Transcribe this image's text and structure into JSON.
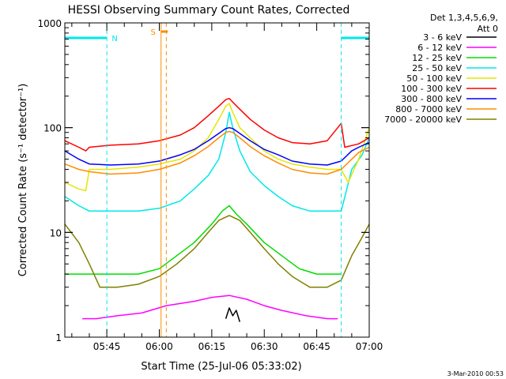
{
  "chart_data": {
    "type": "line",
    "title": "HESSI Observing Summary Count Rates, Corrected",
    "xlabel": "Start Time (25-Jul-06 05:33:02)",
    "ylabel": "Corrected Count Rate (s⁻¹ detector⁻¹)",
    "y_scale": "log",
    "ylim": [
      1,
      1000
    ],
    "xlim": [
      -7,
      80
    ],
    "x_units": "minutes after 05:40",
    "x_ticks": [
      {
        "t": 5,
        "label": "05:45"
      },
      {
        "t": 20,
        "label": "06:00"
      },
      {
        "t": 35,
        "label": "06:15"
      },
      {
        "t": 50,
        "label": "06:30"
      },
      {
        "t": 65,
        "label": "06:45"
      },
      {
        "t": 80,
        "label": "07:00"
      }
    ],
    "y_ticks": [
      {
        "v": 1,
        "label": "1"
      },
      {
        "v": 10,
        "label": "10"
      },
      {
        "v": 100,
        "label": "100"
      },
      {
        "v": 1000,
        "label": "1000"
      }
    ],
    "legend": {
      "header1": "Det 1,3,4,5,6,9,",
      "header2": "Att 0",
      "placement": "right"
    },
    "markers": [
      {
        "label": "N",
        "start": 5.0,
        "end": 72.0,
        "color": "#00e8e8"
      },
      {
        "label": "S",
        "start": 20.5,
        "end": 22.0,
        "color": "#ff8c00"
      }
    ],
    "series": [
      {
        "name": "3 - 6 keV",
        "color": "#000000",
        "x": [
          39,
          40,
          41,
          42,
          43
        ],
        "y": [
          1.5,
          1.9,
          1.6,
          1.8,
          1.4
        ]
      },
      {
        "name": "6 - 12 keV",
        "color": "#ff00ff",
        "x": [
          -2,
          2,
          8,
          15,
          22,
          30,
          35,
          40,
          45,
          50,
          55,
          62,
          68,
          71
        ],
        "y": [
          1.5,
          1.5,
          1.6,
          1.7,
          2.0,
          2.2,
          2.4,
          2.5,
          2.3,
          2.0,
          1.8,
          1.6,
          1.5,
          1.5
        ]
      },
      {
        "name": "12 - 25 keV",
        "color": "#00dd00",
        "x": [
          -7,
          0,
          6,
          14,
          20,
          25,
          30,
          35,
          38,
          40,
          42,
          45,
          50,
          55,
          60,
          65,
          70,
          72
        ],
        "y": [
          4,
          4,
          4,
          4,
          4.5,
          6,
          8,
          12,
          16,
          18,
          15,
          12,
          8,
          6,
          4.5,
          4,
          4,
          4
        ]
      },
      {
        "name": "25 - 50 keV",
        "color": "#00e8e8",
        "x": [
          -7,
          -3,
          0,
          6,
          14,
          20,
          26,
          30,
          34,
          37,
          39,
          40,
          41,
          43,
          46,
          50,
          54,
          58,
          63,
          68,
          72,
          75,
          78,
          80
        ],
        "y": [
          22,
          18,
          16,
          16,
          16,
          17,
          20,
          26,
          35,
          50,
          90,
          140,
          100,
          60,
          38,
          28,
          22,
          18,
          16,
          16,
          16,
          40,
          55,
          80
        ]
      },
      {
        "name": "50 - 100 keV",
        "color": "#e6e600",
        "x": [
          -7,
          -3,
          -1,
          0,
          6,
          14,
          20,
          26,
          30,
          34,
          37,
          39,
          40,
          41,
          43,
          46,
          50,
          54,
          58,
          63,
          68,
          72,
          74,
          77,
          80
        ],
        "y": [
          30,
          26,
          25,
          40,
          40,
          42,
          45,
          50,
          60,
          80,
          120,
          160,
          170,
          140,
          100,
          80,
          60,
          50,
          45,
          42,
          40,
          40,
          30,
          50,
          100
        ]
      },
      {
        "name": "100 - 300 keV",
        "color": "#ff0000",
        "x": [
          -7,
          -3,
          -1,
          0,
          6,
          14,
          20,
          26,
          30,
          34,
          37,
          39,
          40,
          41,
          43,
          46,
          50,
          54,
          58,
          63,
          68,
          72,
          73,
          77,
          80
        ],
        "y": [
          75,
          65,
          60,
          65,
          68,
          70,
          75,
          85,
          100,
          130,
          160,
          185,
          190,
          175,
          150,
          120,
          95,
          80,
          72,
          70,
          75,
          110,
          65,
          70,
          80
        ]
      },
      {
        "name": "300 - 800 keV",
        "color": "#0000ff",
        "x": [
          -7,
          -3,
          0,
          6,
          14,
          20,
          26,
          30,
          34,
          37,
          39,
          40,
          41,
          43,
          46,
          50,
          54,
          58,
          63,
          68,
          72,
          75,
          77,
          80
        ],
        "y": [
          60,
          50,
          45,
          44,
          45,
          48,
          55,
          62,
          75,
          88,
          98,
          100,
          98,
          88,
          75,
          62,
          55,
          48,
          45,
          44,
          48,
          60,
          65,
          72
        ]
      },
      {
        "name": "800 - 7000 keV",
        "color": "#ff8c00",
        "x": [
          -7,
          -3,
          0,
          6,
          14,
          20,
          26,
          30,
          34,
          37,
          39,
          40,
          41,
          43,
          46,
          50,
          54,
          58,
          63,
          68,
          72,
          75,
          77,
          80
        ],
        "y": [
          45,
          40,
          38,
          36,
          37,
          40,
          46,
          54,
          66,
          80,
          90,
          92,
          90,
          80,
          66,
          54,
          46,
          40,
          37,
          36,
          40,
          50,
          58,
          65
        ]
      },
      {
        "name": "7000 - 20000 keV",
        "color": "#808000",
        "x": [
          -7,
          -3,
          0,
          3,
          8,
          14,
          20,
          25,
          30,
          34,
          37,
          39,
          40,
          41,
          43,
          46,
          50,
          54,
          58,
          63,
          68,
          72,
          75,
          78,
          80
        ],
        "y": [
          12,
          8,
          5,
          3,
          3,
          3.2,
          3.8,
          5,
          7,
          10,
          13,
          14,
          14.5,
          14,
          13,
          10,
          7,
          5,
          3.8,
          3,
          3,
          3.5,
          6,
          9,
          12
        ]
      }
    ],
    "footer_date": "3-Mar-2010 00:53"
  }
}
